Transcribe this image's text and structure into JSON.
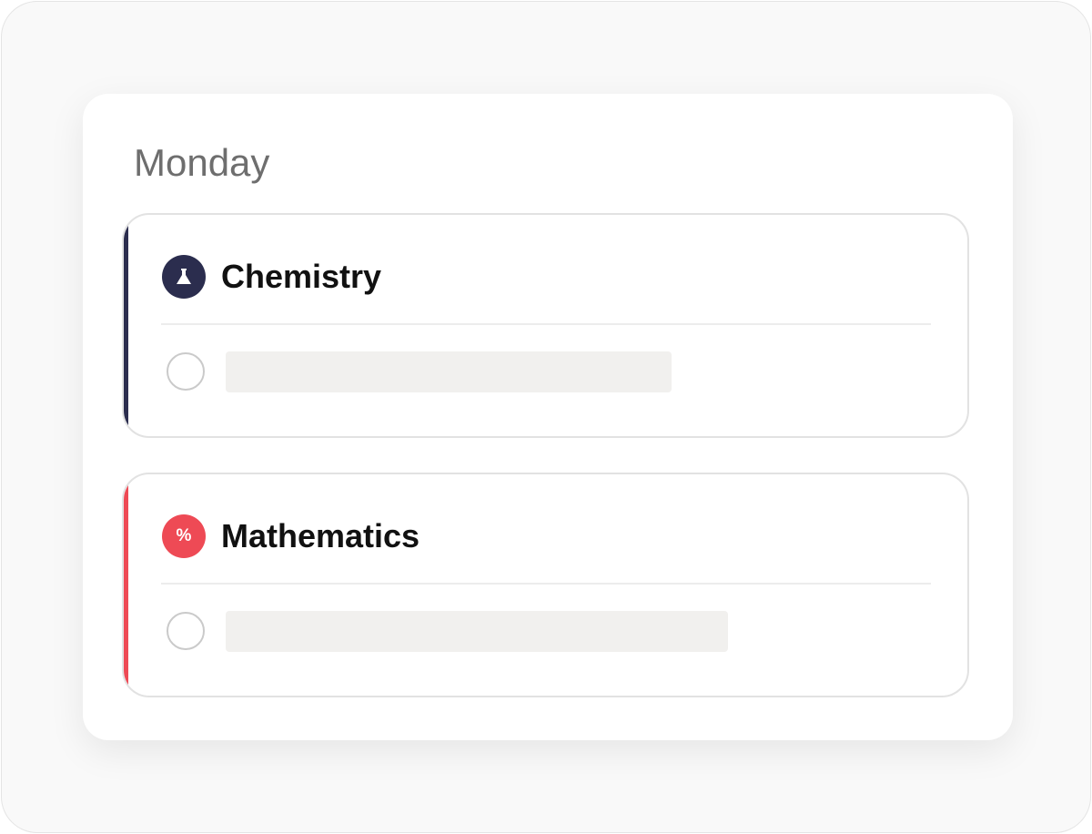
{
  "day_label": "Monday",
  "subjects": [
    {
      "title": "Chemistry",
      "icon": "flask-icon",
      "color": "#2b2d4e",
      "task_completed": false
    },
    {
      "title": "Mathematics",
      "icon": "percent-icon",
      "icon_text": "%",
      "color": "#ee4a55",
      "task_completed": false
    }
  ]
}
